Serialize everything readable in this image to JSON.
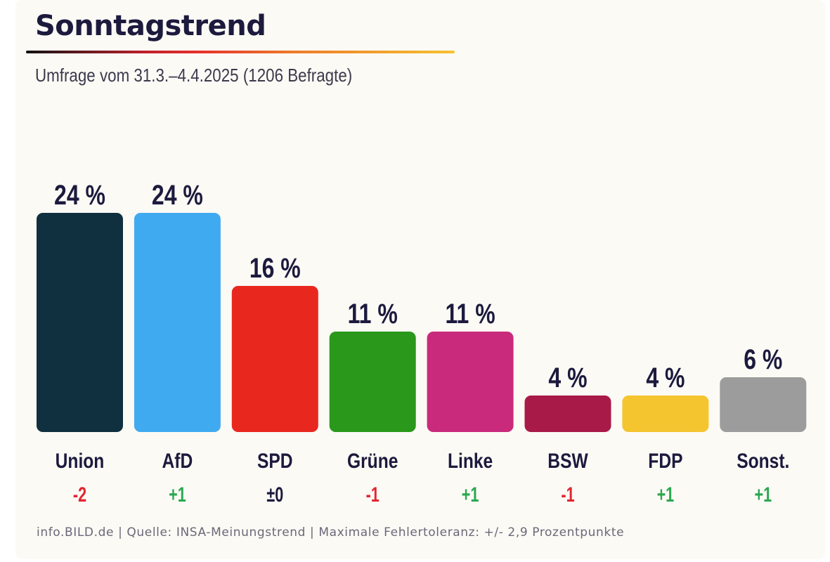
{
  "header": {
    "title": "Sonntagstrend",
    "subtitle": "Umfrage vom 31.3.–4.4.2025 (1206 Befragte)"
  },
  "footer": {
    "text": "info.BILD.de | Quelle: INSA-Meinungstrend | Maximale Fehlertoleranz: +/- 2,9 Prozentpunkte"
  },
  "colors": {
    "text": "#1c1a3d",
    "positive": "#2aa84f",
    "negative": "#e02630",
    "neutral": "#1c1a3d",
    "background": "#fcfaf5"
  },
  "chart_data": {
    "type": "bar",
    "title": "Sonntagstrend",
    "subtitle": "Umfrage vom 31.3.–4.4.2025 (1206 Befragte)",
    "xlabel": "",
    "ylabel": "",
    "ylim": [
      0,
      24
    ],
    "grid": false,
    "unit": "%",
    "categories": [
      "Union",
      "AfD",
      "SPD",
      "Grüne",
      "Linke",
      "BSW",
      "FDP",
      "Sonst."
    ],
    "values": [
      24,
      24,
      16,
      11,
      11,
      4,
      4,
      6
    ],
    "value_labels": [
      "24 %",
      "24 %",
      "16 %",
      "11 %",
      "11 %",
      "4 %",
      "4 %",
      "6 %"
    ],
    "changes": [
      -2,
      1,
      0,
      -1,
      1,
      -1,
      1,
      1
    ],
    "change_labels": [
      "-2",
      "+1",
      "±0",
      "-1",
      "+1",
      "-1",
      "+1",
      "+1"
    ],
    "bar_colors": [
      "#10303f",
      "#40aaf0",
      "#e8281f",
      "#2a981a",
      "#c92a7c",
      "#a81a48",
      "#f5c530",
      "#9c9c9c"
    ]
  }
}
